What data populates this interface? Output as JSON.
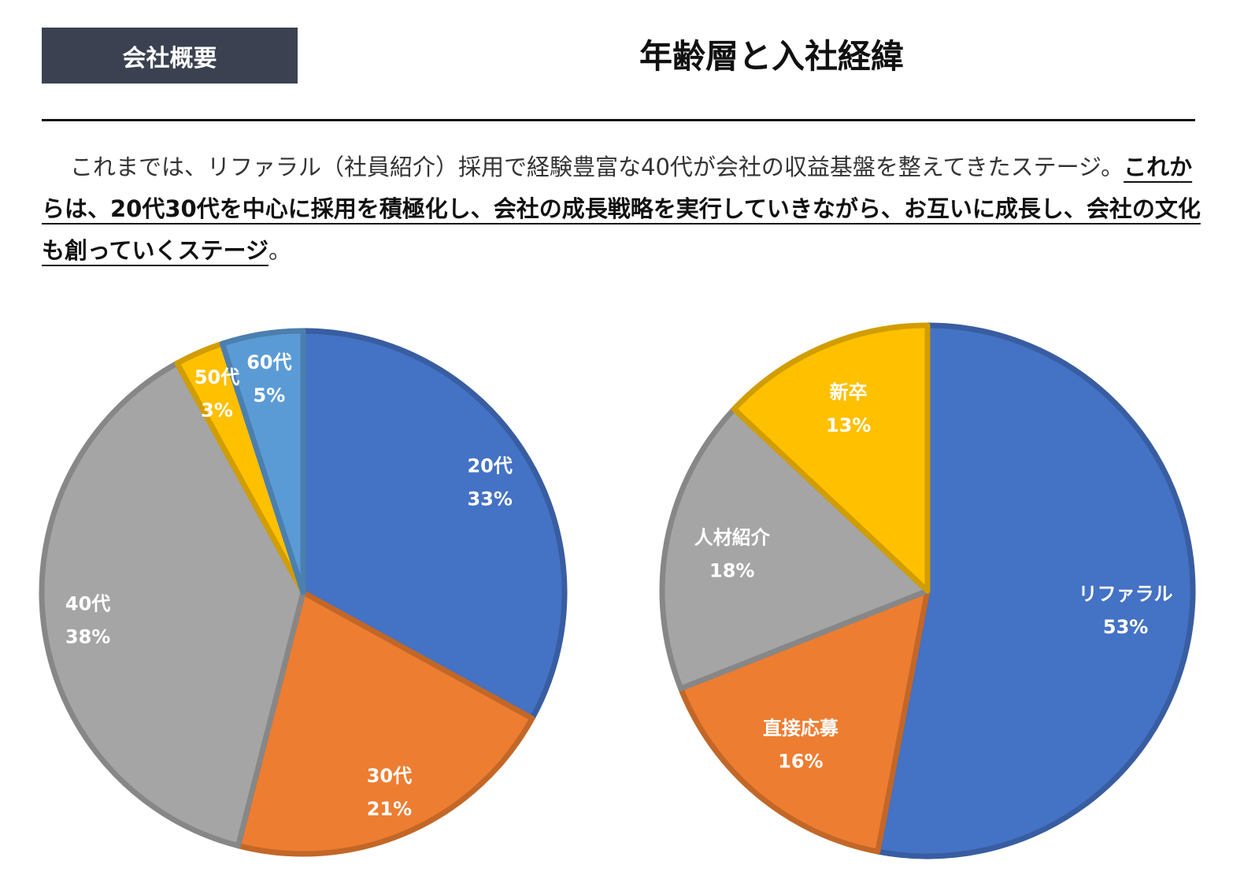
{
  "header": {
    "tag": "会社概要",
    "title": "年齢層と入社経緯"
  },
  "paragraph": {
    "normal": "これまでは、リファラル（社員紹介）採用で経験豊富な40代が会社の収益基盤を整えてきたステージ。",
    "emphasis": "これからは、20代30代を中心に採用を積極化し、会社の成長戦略を実行していきながら、お互いに成長し、会社の文化も創っていくステージ",
    "end": "。"
  },
  "chart_data": [
    {
      "type": "pie",
      "title": "",
      "categories": [
        "20代",
        "30代",
        "40代",
        "50代",
        "60代"
      ],
      "values": [
        33,
        21,
        38,
        3,
        5
      ],
      "labels": [
        "33%",
        "21%",
        "38%",
        "3%",
        "5%"
      ],
      "colors": [
        "#4472C4",
        "#ED7D31",
        "#A5A5A5",
        "#FFC000",
        "#5B9BD5"
      ],
      "start": "12 o'clock, clockwise"
    },
    {
      "type": "pie",
      "title": "",
      "categories": [
        "リファラル",
        "直接応募",
        "人材紹介",
        "新卒"
      ],
      "values": [
        53,
        16,
        18,
        13
      ],
      "labels": [
        "53%",
        "16%",
        "18%",
        "13%"
      ],
      "colors": [
        "#4472C4",
        "#ED7D31",
        "#A5A5A5",
        "#FFC000"
      ],
      "start": "12 o'clock, clockwise"
    }
  ]
}
